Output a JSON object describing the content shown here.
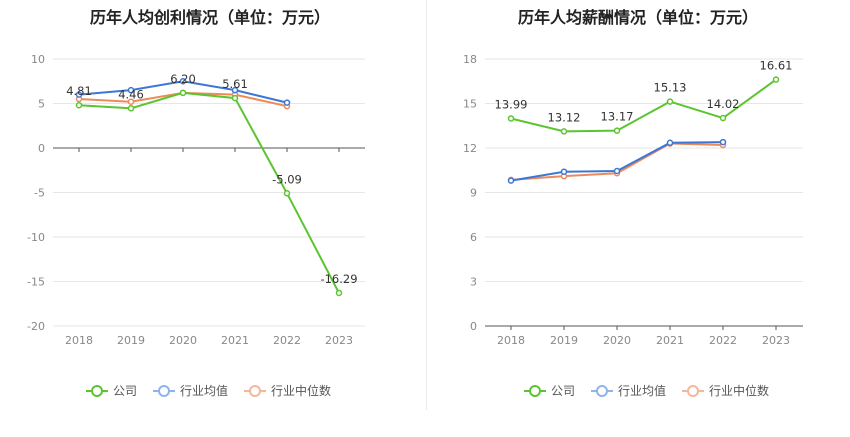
{
  "chart_data": [
    {
      "type": "line",
      "title": "历年人均创利情况（单位：万元）",
      "categories": [
        "2018",
        "2019",
        "2020",
        "2021",
        "2022",
        "2023"
      ],
      "ylim": [
        -20,
        10
      ],
      "yticks": [
        "10",
        "5",
        "0",
        "-5",
        "-10",
        "-15",
        "-20"
      ],
      "grid": true,
      "legend_position": "bottom",
      "series": [
        {
          "name": "公司",
          "values": [
            4.81,
            4.46,
            6.2,
            5.61,
            -5.09,
            -16.29
          ],
          "color": "#5cc430",
          "labels": [
            "4.81",
            "4.46",
            "6.20",
            "5.61",
            "-5.09",
            "-16.29"
          ]
        },
        {
          "name": "行业均值",
          "values": [
            6.0,
            6.5,
            7.5,
            6.5,
            5.1,
            null
          ],
          "color": "#3d77d6",
          "labels": []
        },
        {
          "name": "行业中位数",
          "values": [
            5.5,
            5.2,
            6.2,
            6.0,
            4.7,
            null
          ],
          "color": "#ee8a5a",
          "labels": []
        }
      ]
    },
    {
      "type": "line",
      "title": "历年人均薪酬情况（单位：万元）",
      "categories": [
        "2018",
        "2019",
        "2020",
        "2021",
        "2022",
        "2023"
      ],
      "ylim": [
        0,
        18
      ],
      "yticks": [
        "18",
        "15",
        "12",
        "9",
        "6",
        "3",
        "0"
      ],
      "grid": true,
      "legend_position": "bottom",
      "series": [
        {
          "name": "公司",
          "values": [
            13.99,
            13.12,
            13.17,
            15.13,
            14.02,
            16.61
          ],
          "color": "#5cc430",
          "labels": [
            "13.99",
            "13.12",
            "13.17",
            "15.13",
            "14.02",
            "16.61"
          ]
        },
        {
          "name": "行业均值",
          "values": [
            9.8,
            10.4,
            10.45,
            12.35,
            12.4,
            null
          ],
          "color": "#3d77d6",
          "labels": []
        },
        {
          "name": "行业中位数",
          "values": [
            9.85,
            10.1,
            10.3,
            12.3,
            12.2,
            null
          ],
          "color": "#ee8a5a",
          "labels": []
        }
      ]
    }
  ],
  "legend": {
    "company": "公司",
    "industry_mean": "行业均值",
    "industry_median": "行业中位数",
    "company_color": "#5cc430",
    "industry_mean_color": "#8fb3ee",
    "industry_median_color": "#f5b79a"
  }
}
